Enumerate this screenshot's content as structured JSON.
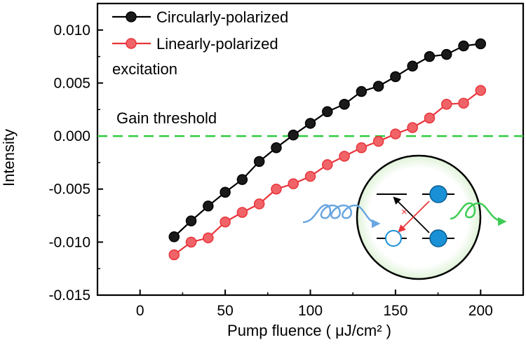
{
  "chart_data": {
    "type": "line",
    "title": "",
    "xlabel": "Pump fluence ( μJ/cm² )",
    "ylabel": "Intensity",
    "xlim": [
      -25,
      225
    ],
    "ylim": [
      -0.015,
      0.0125
    ],
    "x_ticks": [
      0,
      50,
      100,
      150,
      200
    ],
    "x_tick_labels": [
      "0",
      "50",
      "100",
      "150",
      "200"
    ],
    "y_ticks": [
      -0.015,
      -0.01,
      -0.005,
      0.0,
      0.005,
      0.01
    ],
    "y_tick_labels": [
      "-0.015",
      "-0.010",
      "-0.005",
      "0.000",
      "0.005",
      "0.010"
    ],
    "x": [
      20,
      30,
      40,
      50,
      60,
      70,
      80,
      90,
      100,
      110,
      120,
      130,
      140,
      150,
      160,
      170,
      180,
      190,
      200
    ],
    "series": [
      {
        "name": "Circularly-polarized",
        "color": "#000000",
        "marker_fill": "#1a1a1a",
        "values": [
          -0.0095,
          -0.008,
          -0.0066,
          -0.0053,
          -0.0041,
          -0.0024,
          -0.0011,
          0.0001,
          0.0012,
          0.0023,
          0.003,
          0.0042,
          0.0047,
          0.0056,
          0.0066,
          0.0075,
          0.0077,
          0.0085,
          0.0087
        ]
      },
      {
        "name": "Linearly-polarized",
        "color": "#e8343a",
        "marker_fill": "#f06468",
        "values": [
          -0.0112,
          -0.01,
          -0.0096,
          -0.0081,
          -0.0072,
          -0.0064,
          -0.005,
          -0.0045,
          -0.0038,
          -0.0027,
          -0.0019,
          -0.0011,
          -0.0005,
          0.0002,
          0.0008,
          0.0017,
          0.003,
          0.0031,
          0.0043
        ]
      }
    ],
    "legend": {
      "placement": "top-left",
      "note": "excitation"
    },
    "threshold": {
      "label": "Gain threshold",
      "value": 0.0,
      "color": "#2ecc40"
    },
    "inset": {
      "incoming_wave_color": "#6aa6e0",
      "outgoing_wave_color": "#3dcc55",
      "filled_state_color": "#1a90d6",
      "cross_arrow_color": "#e8343a"
    }
  }
}
